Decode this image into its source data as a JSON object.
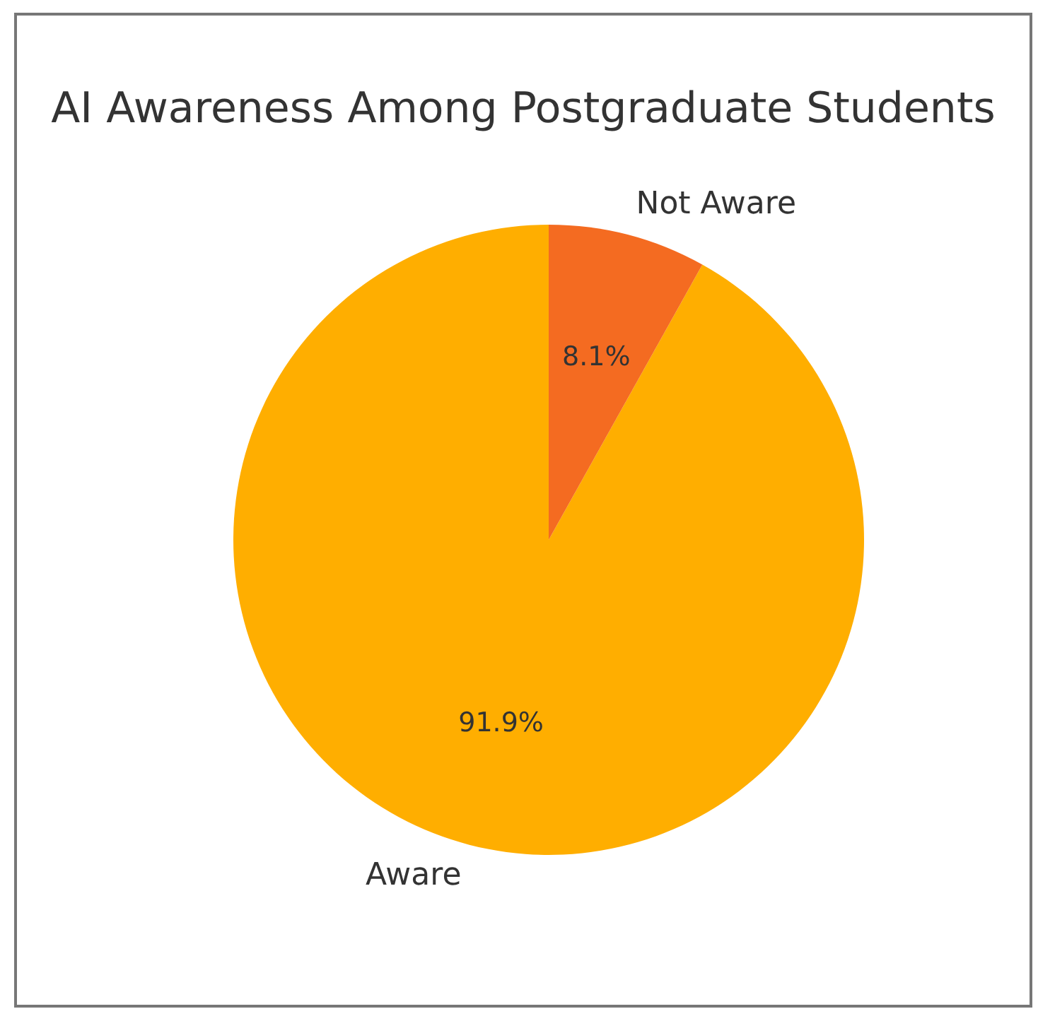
{
  "chart_data": {
    "type": "pie",
    "title": "AI Awareness Among Postgraduate Students",
    "categories": [
      "Aware",
      "Not Aware"
    ],
    "values": [
      91.9,
      8.1
    ],
    "colors": [
      "#ffae00",
      "#f46b21"
    ],
    "value_labels": [
      "91.9%",
      "8.1%"
    ]
  }
}
